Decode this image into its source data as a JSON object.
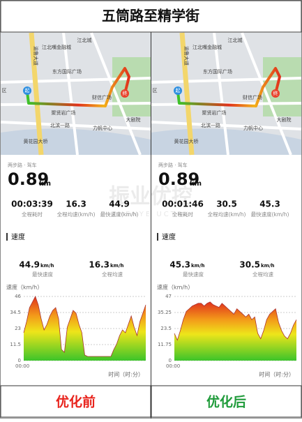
{
  "title": "五筒路至精学街",
  "watermark": {
    "cn": "振业优控",
    "en": "ZHENYE UCTRL"
  },
  "panels": [
    {
      "caption": "优化前",
      "caption_color": "#e8231c",
      "map_labels": [
        "江北城",
        "江北嘴金融城",
        "东方国际广场",
        "财信广场",
        "聚贤岩广场",
        "北滨一路",
        "力帆中心",
        "大剧院",
        "黄花园大桥",
        "渝鲁大道",
        "区"
      ],
      "start": "起",
      "end": "终",
      "source": "两步路 · 驾车",
      "distance": "0.89",
      "distance_unit": "km",
      "stats": [
        {
          "value": "00:03:39",
          "label": "全程耗时"
        },
        {
          "value": "16.3",
          "label": "全程均速(km/h)"
        },
        {
          "value": "44.9",
          "label": "最快速度(km/h)"
        }
      ],
      "section": "速度",
      "summary": [
        {
          "value": "44.9",
          "unit": "km/h",
          "label": "最快速度"
        },
        {
          "value": "16.3",
          "unit": "km/h",
          "label": "全程均速"
        }
      ],
      "chart": {
        "type": "area",
        "y_label": "速度（km/h）",
        "x_label": "时间（时:分）",
        "x_start_label": "00:00",
        "ylim": [
          0,
          46
        ],
        "yticks": [
          0,
          11.5,
          23,
          34.5,
          46
        ],
        "grid": true,
        "values": [
          20,
          28,
          38,
          42,
          46,
          40,
          30,
          22,
          26,
          32,
          36,
          38,
          30,
          8,
          6,
          24,
          30,
          36,
          34,
          26,
          20,
          4,
          3,
          3,
          3,
          3,
          3,
          3,
          3,
          3,
          3,
          8,
          12,
          18,
          22,
          20,
          26,
          32,
          24,
          18,
          28,
          34,
          40
        ]
      }
    },
    {
      "caption": "优化后",
      "caption_color": "#1f9b3a",
      "map_labels": [
        "江北城",
        "江北嘴金融城",
        "东方国际广场",
        "财信广场",
        "聚贤岩广场",
        "北滨一路",
        "力帆中心",
        "大剧院",
        "黄花园大桥",
        "渝鲁大道",
        "区"
      ],
      "start": "起",
      "end": "终",
      "source": "两步路 · 驾车",
      "distance": "0.89",
      "distance_unit": "km",
      "stats": [
        {
          "value": "00:01:46",
          "label": "全程耗时"
        },
        {
          "value": "30.5",
          "label": "全程均速(km/h)"
        },
        {
          "value": "45.3",
          "label": "最快速度(km/h)"
        }
      ],
      "section": "速度",
      "summary": [
        {
          "value": "45.3",
          "unit": "km/h",
          "label": "最快速度"
        },
        {
          "value": "30.5",
          "unit": "km/h",
          "label": "全程均速"
        }
      ],
      "chart": {
        "type": "area",
        "y_label": "速度（km/h）",
        "x_label": "时间（时:分）",
        "x_start_label": "00:00",
        "ylim": [
          0,
          47
        ],
        "yticks": [
          0,
          11.75,
          23.5,
          35.25,
          47
        ],
        "grid": true,
        "values": [
          20,
          15,
          22,
          30,
          36,
          38,
          40,
          41,
          42,
          42,
          40,
          42,
          43,
          41,
          40,
          39,
          42,
          40,
          38,
          36,
          34,
          38,
          36,
          34,
          32,
          34,
          30,
          32,
          20,
          16,
          22,
          30,
          34,
          36,
          38,
          28,
          22,
          18,
          16,
          20,
          26,
          30
        ]
      }
    }
  ]
}
